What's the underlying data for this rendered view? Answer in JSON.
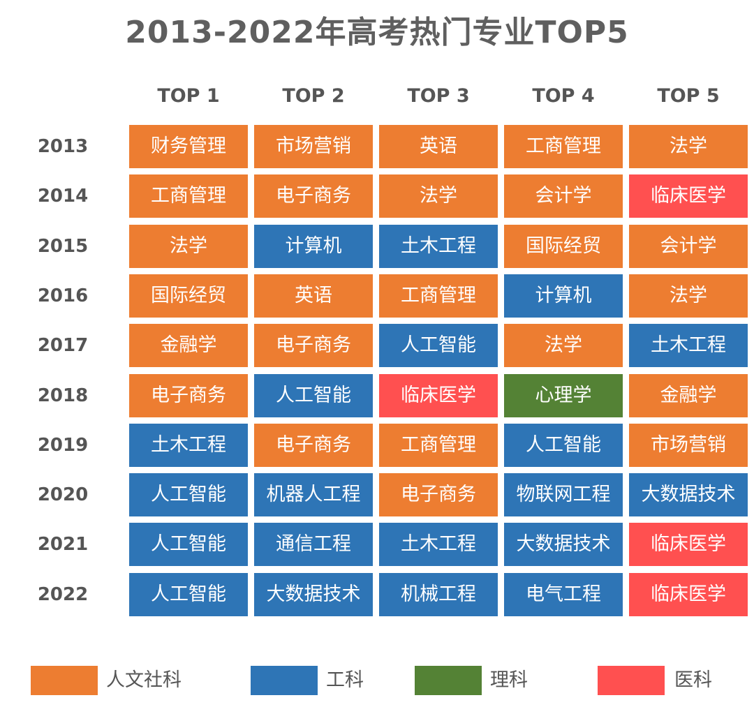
{
  "title": "2013-2022年高考热门专业TOP5",
  "chart_data": {
    "type": "table",
    "title": "2013-2022年高考热门专业TOP5",
    "columns": [
      "TOP 1",
      "TOP 2",
      "TOP 3",
      "TOP 4",
      "TOP 5"
    ],
    "rows": [
      {
        "year": "2013",
        "cells": [
          {
            "text": "财务管理",
            "cat": "humanities"
          },
          {
            "text": "市场营销",
            "cat": "humanities"
          },
          {
            "text": "英语",
            "cat": "humanities"
          },
          {
            "text": "工商管理",
            "cat": "humanities"
          },
          {
            "text": "法学",
            "cat": "humanities"
          }
        ]
      },
      {
        "year": "2014",
        "cells": [
          {
            "text": "工商管理",
            "cat": "humanities"
          },
          {
            "text": "电子商务",
            "cat": "humanities"
          },
          {
            "text": "法学",
            "cat": "humanities"
          },
          {
            "text": "会计学",
            "cat": "humanities"
          },
          {
            "text": "临床医学",
            "cat": "medicine"
          }
        ]
      },
      {
        "year": "2015",
        "cells": [
          {
            "text": "法学",
            "cat": "humanities"
          },
          {
            "text": "计算机",
            "cat": "engineering"
          },
          {
            "text": "土木工程",
            "cat": "engineering"
          },
          {
            "text": "国际经贸",
            "cat": "humanities"
          },
          {
            "text": "会计学",
            "cat": "humanities"
          }
        ]
      },
      {
        "year": "2016",
        "cells": [
          {
            "text": "国际经贸",
            "cat": "humanities"
          },
          {
            "text": "英语",
            "cat": "humanities"
          },
          {
            "text": "工商管理",
            "cat": "humanities"
          },
          {
            "text": "计算机",
            "cat": "engineering"
          },
          {
            "text": "法学",
            "cat": "humanities"
          }
        ]
      },
      {
        "year": "2017",
        "cells": [
          {
            "text": "金融学",
            "cat": "humanities"
          },
          {
            "text": "电子商务",
            "cat": "humanities"
          },
          {
            "text": "人工智能",
            "cat": "engineering"
          },
          {
            "text": "法学",
            "cat": "humanities"
          },
          {
            "text": "土木工程",
            "cat": "engineering"
          }
        ]
      },
      {
        "year": "2018",
        "cells": [
          {
            "text": "电子商务",
            "cat": "humanities"
          },
          {
            "text": "人工智能",
            "cat": "engineering"
          },
          {
            "text": "临床医学",
            "cat": "medicine"
          },
          {
            "text": "心理学",
            "cat": "science"
          },
          {
            "text": "金融学",
            "cat": "humanities"
          }
        ]
      },
      {
        "year": "2019",
        "cells": [
          {
            "text": "土木工程",
            "cat": "engineering"
          },
          {
            "text": "电子商务",
            "cat": "humanities"
          },
          {
            "text": "工商管理",
            "cat": "humanities"
          },
          {
            "text": "人工智能",
            "cat": "engineering"
          },
          {
            "text": "市场营销",
            "cat": "humanities"
          }
        ]
      },
      {
        "year": "2020",
        "cells": [
          {
            "text": "人工智能",
            "cat": "engineering"
          },
          {
            "text": "机器人工程",
            "cat": "engineering"
          },
          {
            "text": "电子商务",
            "cat": "humanities"
          },
          {
            "text": "物联网工程",
            "cat": "engineering"
          },
          {
            "text": "大数据技术",
            "cat": "engineering"
          }
        ]
      },
      {
        "year": "2021",
        "cells": [
          {
            "text": "人工智能",
            "cat": "engineering"
          },
          {
            "text": "通信工程",
            "cat": "engineering"
          },
          {
            "text": "土木工程",
            "cat": "engineering"
          },
          {
            "text": "大数据技术",
            "cat": "engineering"
          },
          {
            "text": "临床医学",
            "cat": "medicine"
          }
        ]
      },
      {
        "year": "2022",
        "cells": [
          {
            "text": "人工智能",
            "cat": "engineering"
          },
          {
            "text": "大数据技术",
            "cat": "engineering"
          },
          {
            "text": "机械工程",
            "cat": "engineering"
          },
          {
            "text": "电气工程",
            "cat": "engineering"
          },
          {
            "text": "临床医学",
            "cat": "medicine"
          }
        ]
      }
    ],
    "legend": [
      {
        "key": "humanities",
        "label": "人文社科",
        "color": "#ED7D31"
      },
      {
        "key": "engineering",
        "label": "工科",
        "color": "#2E75B6"
      },
      {
        "key": "science",
        "label": "理科",
        "color": "#548235"
      },
      {
        "key": "medicine",
        "label": "医科",
        "color": "#FF5050"
      }
    ]
  }
}
